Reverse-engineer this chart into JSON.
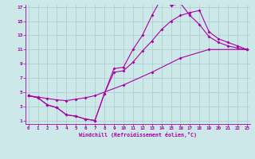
{
  "bg_color": "#cce8e8",
  "line_color": "#aa00aa",
  "grid_color": "#aacccc",
  "xmin": 0,
  "xmax": 23,
  "ymin": 1,
  "ymax": 17,
  "xticks": [
    0,
    1,
    2,
    3,
    4,
    5,
    6,
    7,
    8,
    9,
    10,
    11,
    12,
    13,
    14,
    15,
    16,
    17,
    18,
    19,
    20,
    21,
    22,
    23
  ],
  "yticks": [
    1,
    3,
    5,
    7,
    9,
    11,
    13,
    15,
    17
  ],
  "xlabel": "Windchill (Refroidissement éolien,°C)",
  "line1_x": [
    0,
    1,
    2,
    3,
    4,
    5,
    6,
    7,
    8,
    9,
    10,
    11,
    12,
    13,
    14,
    15,
    16,
    17,
    18,
    19,
    20,
    21,
    22,
    23
  ],
  "line1_y": [
    4.5,
    4.2,
    3.2,
    2.8,
    1.8,
    1.6,
    1.2,
    1.0,
    4.8,
    8.3,
    8.5,
    11.0,
    13.0,
    15.8,
    18.2,
    17.2,
    17.5,
    15.8,
    14.5,
    12.8,
    12.0,
    11.5,
    11.2,
    11.0
  ],
  "line2_x": [
    0,
    1,
    2,
    3,
    4,
    5,
    6,
    7,
    8,
    9,
    10,
    11,
    12,
    13,
    14,
    15,
    16,
    17,
    18,
    19,
    20,
    21,
    22,
    23
  ],
  "line2_y": [
    4.5,
    4.2,
    3.2,
    2.8,
    1.8,
    1.6,
    1.2,
    1.0,
    4.8,
    7.8,
    8.0,
    9.2,
    10.8,
    12.2,
    13.8,
    15.0,
    15.8,
    16.2,
    16.5,
    13.5,
    12.5,
    12.0,
    11.5,
    11.0
  ],
  "line3_x": [
    0,
    1,
    2,
    3,
    4,
    5,
    6,
    7,
    10,
    13,
    16,
    19,
    23
  ],
  "line3_y": [
    4.5,
    4.3,
    4.1,
    3.9,
    3.8,
    4.0,
    4.2,
    4.5,
    6.0,
    7.8,
    9.8,
    11.0,
    11.0
  ]
}
